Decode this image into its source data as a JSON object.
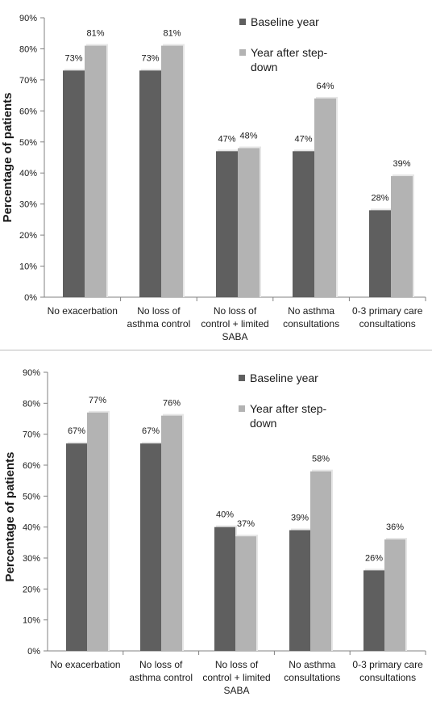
{
  "chart_data": [
    {
      "type": "bar",
      "ylabel": "Percentage of patients",
      "ylim": [
        0,
        90
      ],
      "yticks": [
        "0%",
        "10%",
        "20%",
        "30%",
        "40%",
        "50%",
        "60%",
        "70%",
        "80%",
        "90%"
      ],
      "categories": [
        [
          "No exacerbation"
        ],
        [
          "No loss of",
          "asthma control"
        ],
        [
          "No loss of",
          "control + limited",
          "SABA"
        ],
        [
          "No asthma",
          "consultations"
        ],
        [
          "0-3 primary care",
          "consultations"
        ]
      ],
      "series": [
        {
          "name": "Baseline year",
          "color": "#5f5f5f",
          "values": [
            73,
            73,
            47,
            47,
            28
          ],
          "labels": [
            "73%",
            "73%",
            "47%",
            "47%",
            "28%"
          ]
        },
        {
          "name": "Year after step-down",
          "color": "#b3b3b3",
          "values": [
            81,
            81,
            48,
            64,
            39
          ],
          "labels": [
            "81%",
            "81%",
            "48%",
            "64%",
            "39%"
          ]
        }
      ],
      "legend_lines": [
        [
          "Baseline year"
        ],
        [
          "Year after step-",
          "down"
        ]
      ],
      "legend": "top-right",
      "grid": false
    },
    {
      "type": "bar",
      "ylabel": "Percentage of patients",
      "ylim": [
        0,
        90
      ],
      "yticks": [
        "0%",
        "10%",
        "20%",
        "30%",
        "40%",
        "50%",
        "60%",
        "70%",
        "80%",
        "90%"
      ],
      "categories": [
        [
          "No exacerbation"
        ],
        [
          "No loss of",
          "asthma control"
        ],
        [
          "No loss of",
          "control + limited",
          "SABA"
        ],
        [
          "No asthma",
          "consultations"
        ],
        [
          "0-3 primary care",
          "consultations"
        ]
      ],
      "series": [
        {
          "name": "Baseline year",
          "color": "#5f5f5f",
          "values": [
            67,
            67,
            40,
            39,
            26
          ],
          "labels": [
            "67%",
            "67%",
            "40%",
            "39%",
            "26%"
          ]
        },
        {
          "name": "Year after step-down",
          "color": "#b3b3b3",
          "values": [
            77,
            76,
            37,
            58,
            36
          ],
          "labels": [
            "77%",
            "76%",
            "37%",
            "58%",
            "36%"
          ]
        }
      ],
      "legend_lines": [
        [
          "Baseline year"
        ],
        [
          "Year after step-",
          "down"
        ]
      ],
      "legend": "top-right",
      "grid": false
    }
  ]
}
